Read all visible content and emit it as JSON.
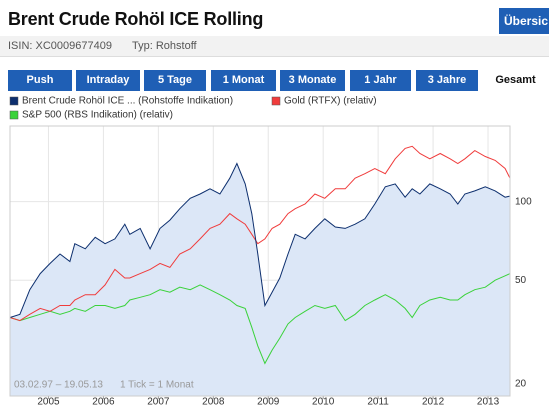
{
  "header": {
    "title": "Brent Crude Rohöl ICE Rolling",
    "button": "Übersic",
    "isin": "ISIN: XC0009677409",
    "type": "Typ: Rohstoff"
  },
  "tabs": [
    "Push",
    "Intraday",
    "5 Tage",
    "1 Monat",
    "3 Monate",
    "1 Jahr",
    "3 Jahre",
    "Gesamt"
  ],
  "chart_data": {
    "type": "line",
    "log_scale": true,
    "grid": true,
    "legend": "top",
    "note": "03.02.97 – 19.05.13",
    "tick_note": "1 Tick = 1 Monat",
    "x": [
      2004.3,
      2004.48,
      2004.66,
      2004.85,
      2005.03,
      2005.21,
      2005.39,
      2005.48,
      2005.67,
      2005.85,
      2006.03,
      2006.21,
      2006.39,
      2006.48,
      2006.67,
      2006.85,
      2007.03,
      2007.21,
      2007.39,
      2007.58,
      2007.76,
      2007.94,
      2008.12,
      2008.3,
      2008.43,
      2008.58,
      2008.7,
      2008.81,
      2008.94,
      2009.07,
      2009.21,
      2009.36,
      2009.49,
      2009.67,
      2009.85,
      2010.03,
      2010.22,
      2010.4,
      2010.58,
      2010.76,
      2010.94,
      2011.13,
      2011.31,
      2011.49,
      2011.62,
      2011.76,
      2011.94,
      2012.13,
      2012.31,
      2012.45,
      2012.58,
      2012.76,
      2012.95,
      2013.13,
      2013.31,
      2013.4
    ],
    "series": [
      {
        "name": "Brent Crude Rohöl ICE ... (Rohstoffe Indikation)",
        "color": "#0d2f6e",
        "area": true,
        "area_color": "#dce7f7",
        "values": [
          36,
          37,
          46,
          53,
          58,
          63,
          59,
          69,
          66,
          73,
          69,
          72,
          82,
          75,
          79,
          66,
          79,
          85,
          94,
          103,
          107,
          112,
          107,
          123,
          140,
          117,
          90,
          63,
          40,
          45,
          51,
          63,
          75,
          72,
          79,
          86,
          80,
          79,
          82,
          86,
          98,
          114,
          117,
          104,
          112,
          107,
          117,
          112,
          107,
          98,
          107,
          110,
          114,
          110,
          104,
          105
        ]
      },
      {
        "name": "Gold (RTFX) (relativ)",
        "color": "#f03c3c",
        "values": [
          36,
          35,
          37,
          39,
          38,
          40,
          40,
          42,
          44,
          44,
          48,
          55,
          51,
          51,
          53,
          55,
          58,
          56,
          63,
          66,
          72,
          79,
          82,
          90,
          86,
          82,
          75,
          69,
          72,
          79,
          82,
          90,
          94,
          98,
          107,
          103,
          112,
          112,
          123,
          128,
          134,
          128,
          146,
          160,
          163,
          153,
          146,
          153,
          146,
          140,
          146,
          157,
          149,
          144,
          134,
          123
        ]
      },
      {
        "name": "S&P 500 (RBS Indikation) (relativ)",
        "color": "#3ad23a",
        "values": [
          36,
          35,
          36,
          37,
          38,
          37,
          38,
          39,
          38,
          40,
          40,
          39,
          40,
          42,
          43,
          44,
          46,
          45,
          47,
          46,
          48,
          46,
          44,
          42,
          40,
          39,
          33,
          28,
          24,
          27,
          30,
          34,
          36,
          38,
          40,
          39,
          40,
          35,
          37,
          40,
          42,
          44,
          42,
          39,
          36,
          40,
          42,
          43,
          42,
          42,
          44,
          46,
          47,
          50,
          52,
          53
        ]
      }
    ],
    "xlim": [
      2004.3,
      2013.4
    ],
    "xticks": [
      2005,
      2006,
      2007,
      2008,
      2009,
      2010,
      2011,
      2012,
      2013
    ],
    "ylim": [
      18,
      195
    ],
    "yticks": [
      20,
      50,
      100
    ]
  }
}
